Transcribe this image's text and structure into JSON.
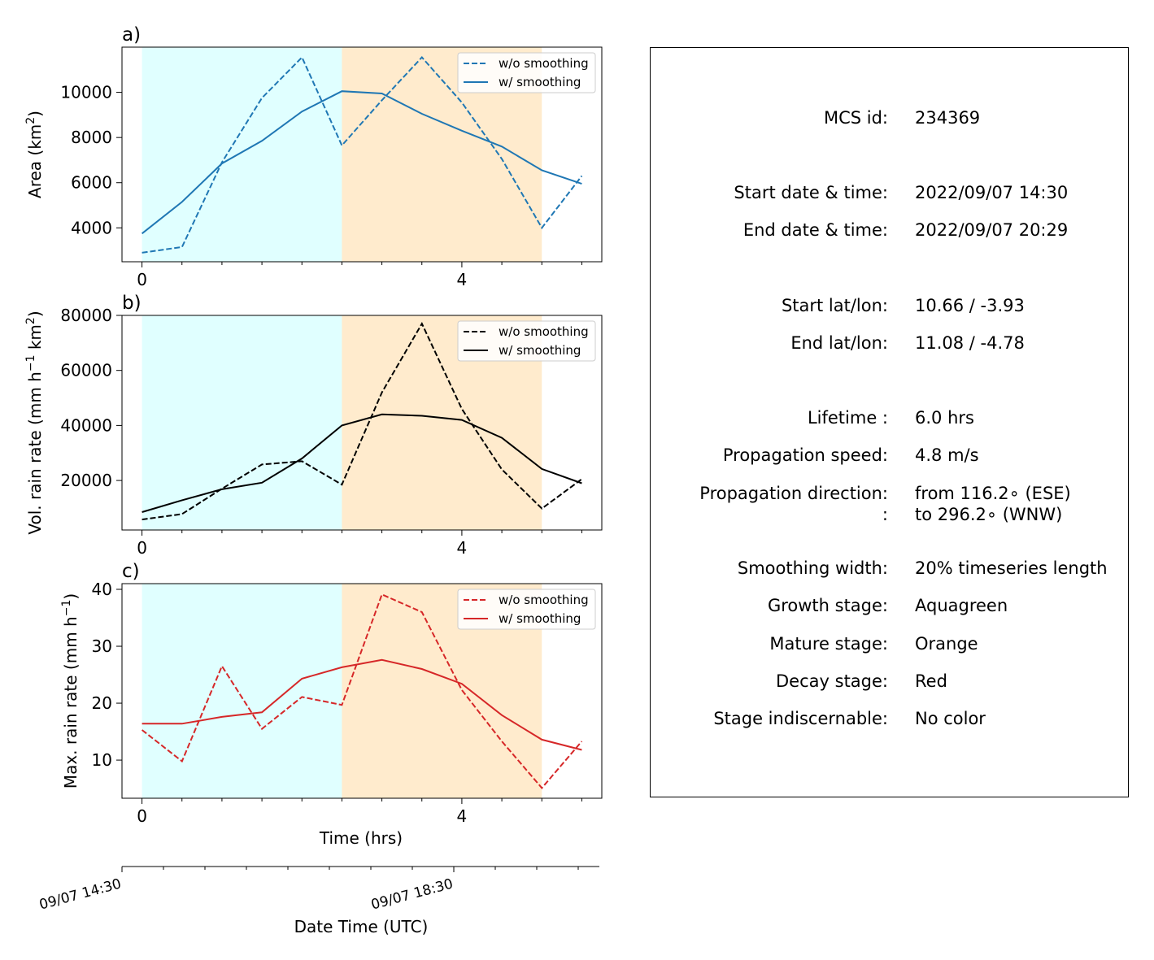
{
  "chart_data": [
    {
      "type": "line",
      "panel_label": "a)",
      "ylabel": "Area  (km",
      "ylabel_sup": "2",
      "ylabel_end": ")",
      "xlim": [
        -0.25,
        5.75
      ],
      "ylim": [
        2500,
        12000
      ],
      "x_ticks": [
        0,
        4
      ],
      "y_ticks": [
        4000,
        6000,
        8000,
        10000
      ],
      "stages": [
        {
          "name": "Growth",
          "from": 0,
          "to": 2.5,
          "color": "#e0ffff"
        },
        {
          "name": "Mature",
          "from": 2.5,
          "to": 5,
          "color": "#ffebcd"
        }
      ],
      "legend_position": "upper right",
      "x": [
        0,
        0.5,
        1,
        1.5,
        2,
        2.5,
        3,
        3.5,
        4,
        4.5,
        5,
        5.5
      ],
      "series": [
        {
          "name": "w/o smoothing",
          "style": "dashed",
          "color": "#1f77b4",
          "values": [
            2900,
            3150,
            6900,
            9750,
            11550,
            7650,
            9650,
            11550,
            9550,
            7050,
            4000,
            6300
          ]
        },
        {
          "name": "w/ smoothing",
          "style": "solid",
          "color": "#1f77b4",
          "values": [
            3750,
            5150,
            6850,
            7850,
            9150,
            10050,
            9950,
            9050,
            8300,
            7600,
            6550,
            5950
          ]
        }
      ]
    },
    {
      "type": "line",
      "panel_label": "b)",
      "ylabel": "Vol. rain rate (mm h",
      "ylabel_sup": "−1",
      "ylabel_mid": " km",
      "ylabel_sup2": "2",
      "ylabel_end": ")",
      "xlim": [
        -0.25,
        5.75
      ],
      "ylim": [
        2000,
        80000
      ],
      "x_ticks": [
        0,
        4
      ],
      "y_ticks": [
        20000,
        40000,
        60000,
        80000
      ],
      "stages": [
        {
          "name": "Growth",
          "from": 0,
          "to": 2.5,
          "color": "#e0ffff"
        },
        {
          "name": "Mature",
          "from": 2.5,
          "to": 5,
          "color": "#ffebcd"
        }
      ],
      "legend_position": "upper right",
      "x": [
        0,
        0.5,
        1,
        1.5,
        2,
        2.5,
        3,
        3.5,
        4,
        4.5,
        5,
        5.5
      ],
      "series": [
        {
          "name": "w/o smoothing",
          "style": "dashed",
          "color": "#000000",
          "values": [
            5800,
            7800,
            17000,
            25800,
            27000,
            18500,
            52000,
            77000,
            46000,
            24000,
            9800,
            20500
          ]
        },
        {
          "name": "w/ smoothing",
          "style": "solid",
          "color": "#000000",
          "values": [
            8500,
            12800,
            16800,
            19200,
            28000,
            40000,
            44000,
            43500,
            42000,
            35500,
            24200,
            19000
          ]
        }
      ]
    },
    {
      "type": "line",
      "panel_label": "c)",
      "ylabel": "Max. rain rate  (mm h",
      "ylabel_sup": "−1",
      "ylabel_end": ")",
      "xlabel": "Time (hrs)",
      "xlim": [
        -0.25,
        5.75
      ],
      "ylim": [
        3.3,
        41
      ],
      "x_ticks": [
        0,
        4
      ],
      "y_ticks": [
        10,
        20,
        30,
        40
      ],
      "stages": [
        {
          "name": "Growth",
          "from": 0,
          "to": 2.5,
          "color": "#e0ffff"
        },
        {
          "name": "Mature",
          "from": 2.5,
          "to": 5,
          "color": "#ffebcd"
        }
      ],
      "legend_position": "upper right",
      "x": [
        0,
        0.5,
        1,
        1.5,
        2,
        2.5,
        3,
        3.5,
        4,
        4.5,
        5,
        5.5
      ],
      "series": [
        {
          "name": "w/o smoothing",
          "style": "dashed",
          "color": "#d62728",
          "values": [
            15.3,
            9.8,
            26.5,
            15.5,
            21.1,
            19.7,
            39.1,
            36.0,
            22.3,
            13.3,
            5.1,
            13.3
          ]
        },
        {
          "name": "w/ smoothing",
          "style": "solid",
          "color": "#d62728",
          "values": [
            16.4,
            16.4,
            17.6,
            18.4,
            24.3,
            26.3,
            27.6,
            26.0,
            23.4,
            17.9,
            13.6,
            11.8
          ]
        }
      ]
    }
  ],
  "datetime_axis": {
    "label": "Date Time (UTC)",
    "ticks": [
      {
        "hour": 0,
        "label": "09/07 14:30"
      },
      {
        "hour": 4,
        "label": "09/07 18:30"
      }
    ],
    "minor_ticks": [
      0.5,
      1,
      1.5,
      2,
      2.5,
      3,
      3.5,
      4.5,
      5,
      5.5
    ]
  },
  "info_panel": {
    "rows": [
      {
        "label": "MCS id:",
        "value": "234369"
      },
      {
        "label": "Start date & time:",
        "value": "2022/09/07 14:30"
      },
      {
        "label": "End date & time:",
        "value": "2022/09/07 20:29"
      },
      {
        "label": "Start lat/lon:",
        "value": "10.66 / -3.93"
      },
      {
        "label": "End lat/lon:",
        "value": "11.08 / -4.78"
      },
      {
        "label": "Lifetime :",
        "value": "6.0 hrs"
      },
      {
        "label": "Propagation speed:",
        "value": "4.8 m/s"
      },
      {
        "label": "Propagation direction:",
        "value": "from 116.2∘ (ESE)"
      },
      {
        "label": ":",
        "value": "to   296.2∘ (WNW)"
      },
      {
        "label": "Smoothing width:",
        "value": "20% timeseries length"
      },
      {
        "label": "Growth stage:",
        "value": "Aquagreen"
      },
      {
        "label": "Mature stage:",
        "value": "Orange"
      },
      {
        "label": "Decay stage:",
        "value": "Red"
      },
      {
        "label": "Stage indiscernable:",
        "value": "No color"
      }
    ]
  }
}
